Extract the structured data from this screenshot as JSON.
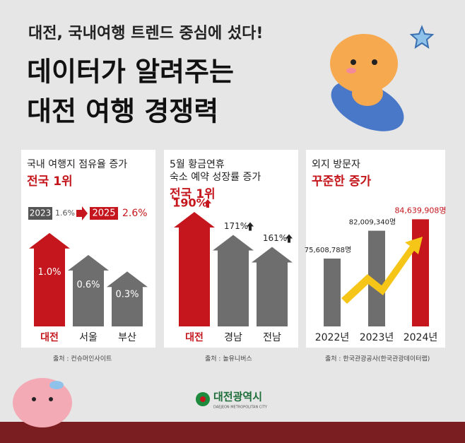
{
  "header": {
    "subtitle": "대전, 국내여행 트렌드 중심에 섰다!",
    "title_line1": "데이터가 알려주는",
    "title_line2": "대전 여행 경쟁력"
  },
  "chart_data": [
    {
      "type": "arrow-bar",
      "title": [
        "국내 여행지 점유율 증가"
      ],
      "highlight": "전국 1위",
      "comparison": {
        "from_year": "2023",
        "from_value": "1.6%",
        "to_year": "2025",
        "to_value": "2.6%"
      },
      "categories": [
        "대전",
        "서울",
        "부산"
      ],
      "values": [
        1.0,
        0.6,
        0.3
      ],
      "value_labels": [
        "1.0%",
        "0.6%",
        "0.3%"
      ],
      "colors": [
        "#c4161c",
        "#6e6e6e",
        "#6e6e6e"
      ],
      "ylim": [
        -0.7,
        1.1
      ],
      "source": "출처 : 컨슈머인사이트"
    },
    {
      "type": "arrow-bar-top",
      "title": [
        "5월 황금연휴",
        "숙소 예약 성장률 증가"
      ],
      "highlight": "전국 1위",
      "categories": [
        "대전",
        "경남",
        "전남"
      ],
      "values": [
        190,
        171,
        161
      ],
      "value_labels": [
        "190%",
        "171%",
        "161%"
      ],
      "colors": [
        "#c4161c",
        "#6e6e6e",
        "#6e6e6e"
      ],
      "ylim": [
        95,
        200
      ],
      "source": "출처 : 놀유니버스"
    },
    {
      "type": "bar",
      "title": [
        "외지 방문자"
      ],
      "highlight": "꾸준한 증가",
      "categories": [
        "2022년",
        "2023년",
        "2024년"
      ],
      "values": [
        75608788,
        82009340,
        84639908
      ],
      "value_labels": [
        "75,608,788명",
        "82,009,340명",
        "84,639,908명"
      ],
      "colors": [
        "#6e6e6e",
        "#6e6e6e",
        "#c4161c"
      ],
      "ylim": [
        60000000,
        86000000
      ],
      "source": "출처 : 한국관광공사(한국관광데이터랩)"
    }
  ],
  "footer": {
    "logo_text": "대전광역시",
    "logo_sub": "DAEJEON METROPOLITAN CITY"
  }
}
